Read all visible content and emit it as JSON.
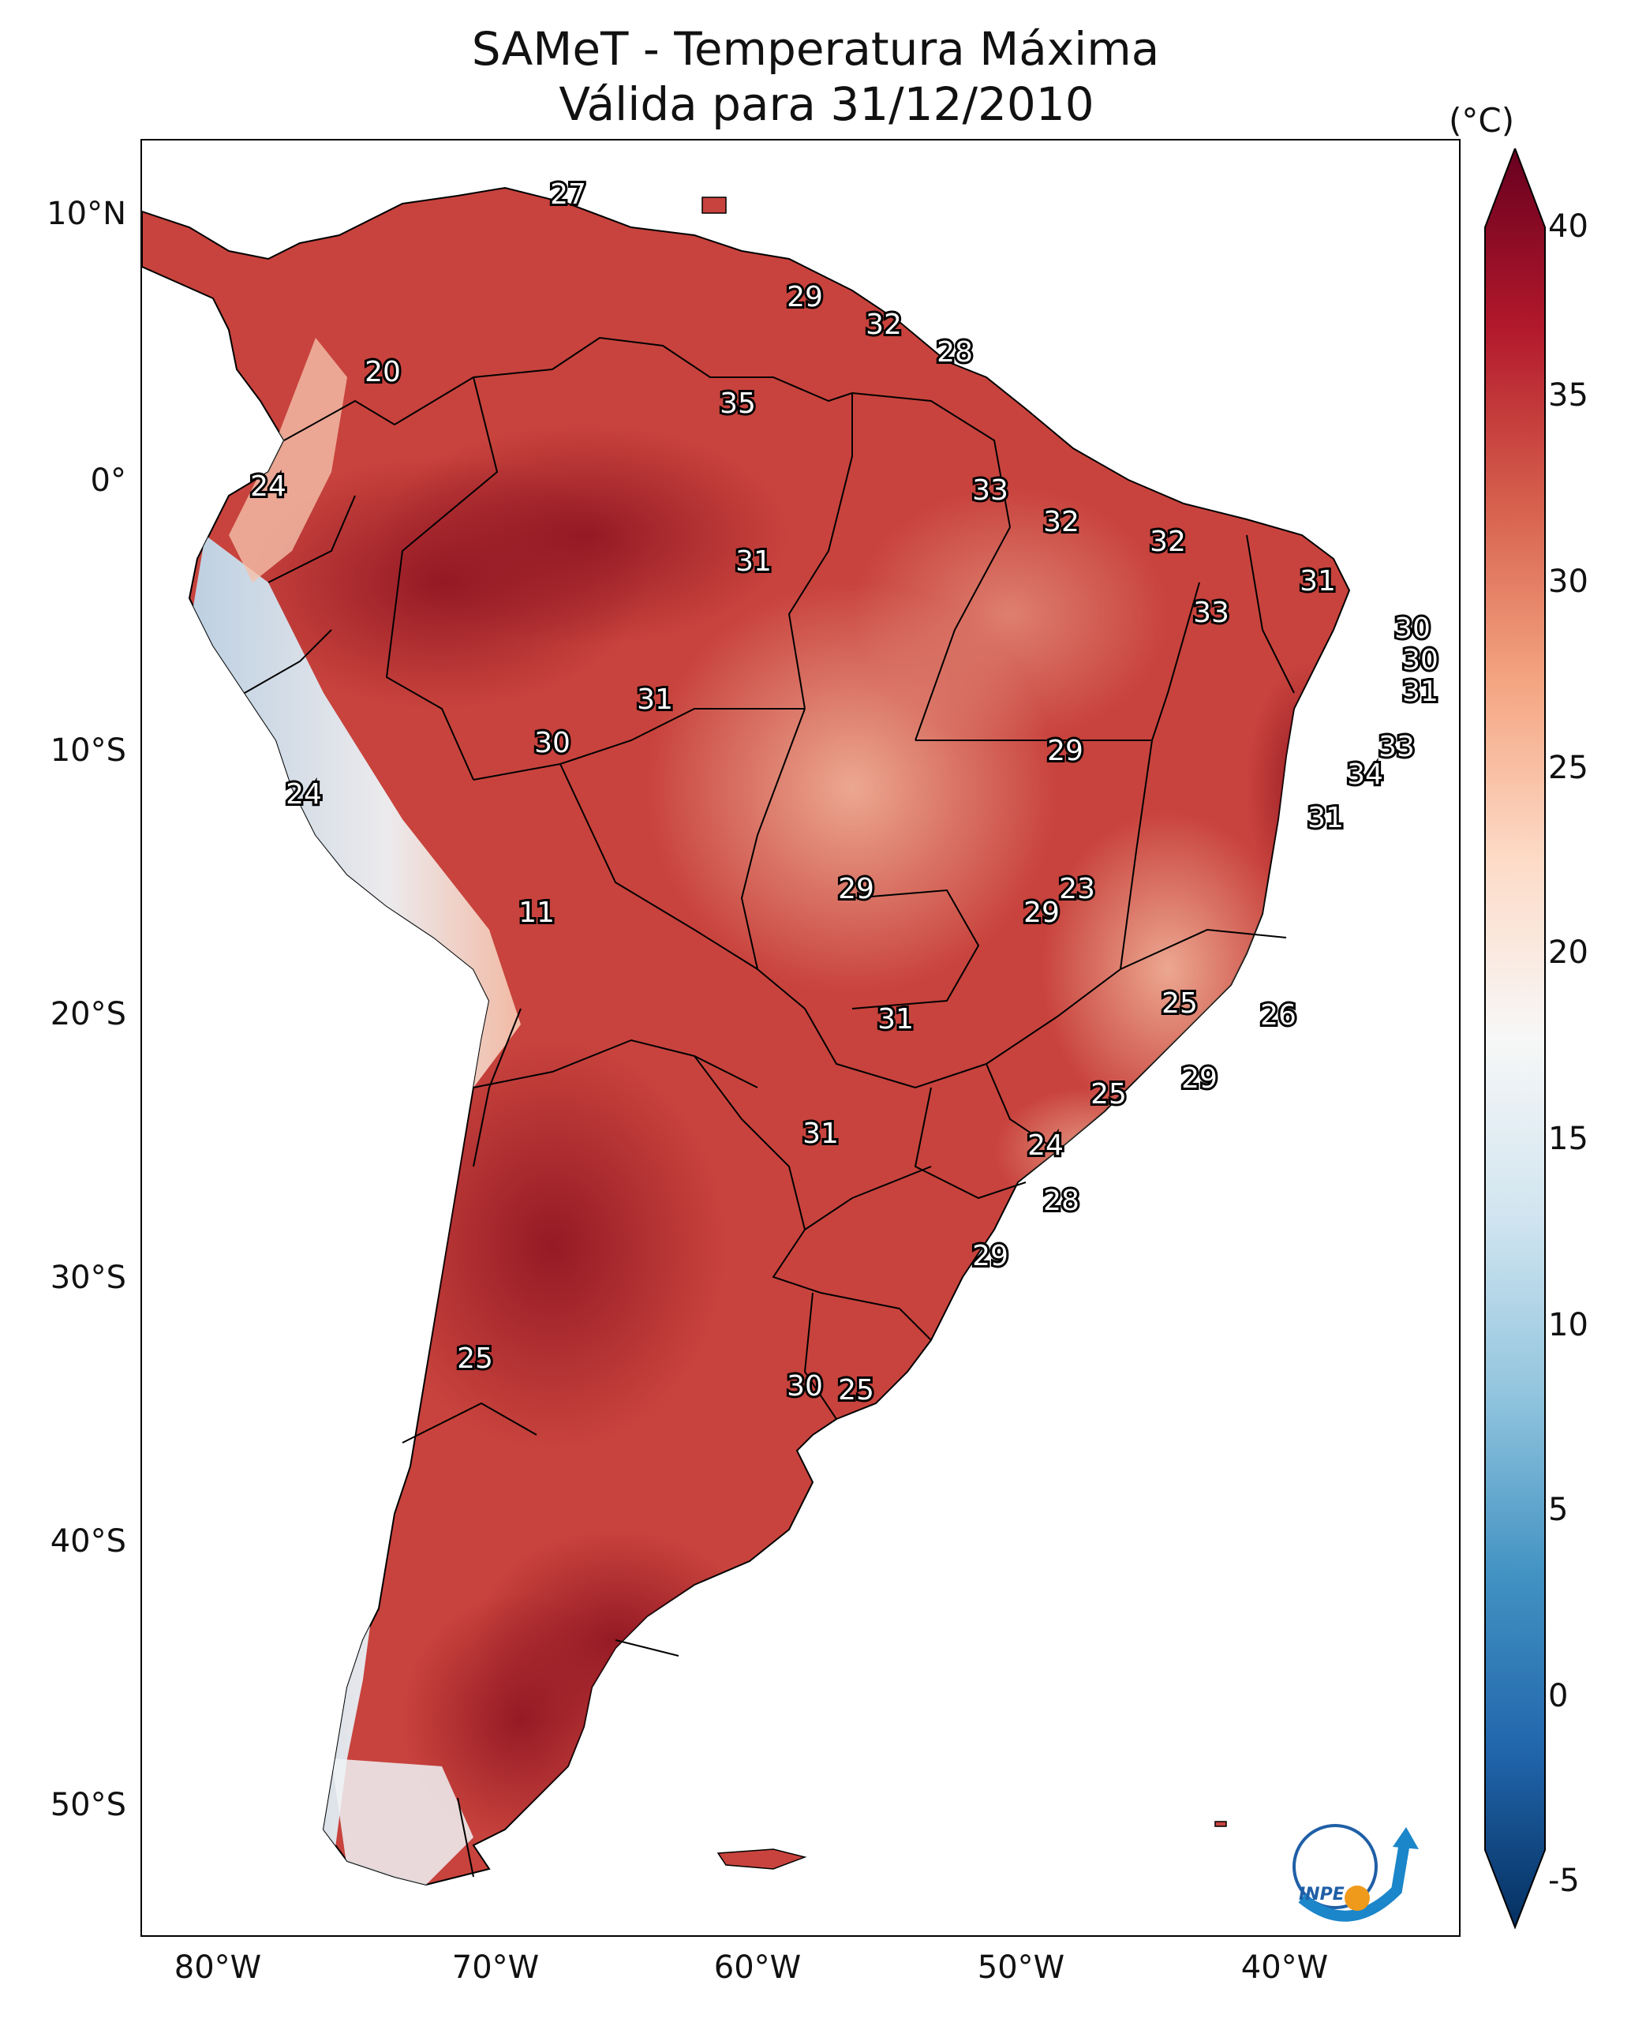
{
  "title": {
    "line1": "SAMeT - Temperatura Máxima",
    "line2": "Válida para 31/12/2010"
  },
  "axes": {
    "lat_labels": [
      "10°N",
      "0°",
      "10°S",
      "20°S",
      "30°S",
      "40°S",
      "50°S"
    ],
    "lon_labels": [
      "80°W",
      "70°W",
      "60°W",
      "50°W",
      "40°W"
    ]
  },
  "colorbar": {
    "unit": "(°C)",
    "ticks": [
      "40",
      "35",
      "30",
      "25",
      "20",
      "15",
      "10",
      "5",
      "0",
      "-5"
    ],
    "colors": [
      "#053061",
      "#2166ac",
      "#4393c3",
      "#92c5de",
      "#d1e5f0",
      "#f7f7f7",
      "#fddbc7",
      "#f4a582",
      "#d6604d",
      "#b2182b",
      "#67001f"
    ]
  },
  "map": {
    "land_color_warm": "#c8433d",
    "land_color_hot": "#8f1522",
    "land_color_mild": "#e89a7f",
    "land_color_cool": "#dbe9f3",
    "ocean_color": "#ffffff",
    "annotations": [
      {
        "name": "venezuela-north",
        "value": "27"
      },
      {
        "name": "guyana",
        "value": "29"
      },
      {
        "name": "suriname",
        "value": "32"
      },
      {
        "name": "french-guiana",
        "value": "28"
      },
      {
        "name": "colombia-andes",
        "value": "20"
      },
      {
        "name": "roraima",
        "value": "35"
      },
      {
        "name": "ecuador",
        "value": "24"
      },
      {
        "name": "amapa",
        "value": "33"
      },
      {
        "name": "para-coast",
        "value": "32"
      },
      {
        "name": "amazonas",
        "value": "31"
      },
      {
        "name": "maranhao",
        "value": "32"
      },
      {
        "name": "ceara",
        "value": "31"
      },
      {
        "name": "piaui",
        "value": "33"
      },
      {
        "name": "rio-grande-do-norte",
        "value": "30"
      },
      {
        "name": "paraiba",
        "value": "30"
      },
      {
        "name": "pernambuco",
        "value": "31"
      },
      {
        "name": "alagoas",
        "value": "33"
      },
      {
        "name": "sergipe",
        "value": "34"
      },
      {
        "name": "acre",
        "value": "30"
      },
      {
        "name": "rondonia",
        "value": "31"
      },
      {
        "name": "tocantins",
        "value": "29"
      },
      {
        "name": "bahia",
        "value": "31"
      },
      {
        "name": "peru-andes",
        "value": "24"
      },
      {
        "name": "bolivia-altiplano",
        "value": "11"
      },
      {
        "name": "mato-grosso",
        "value": "29"
      },
      {
        "name": "brasilia",
        "value": "23"
      },
      {
        "name": "goias",
        "value": "29"
      },
      {
        "name": "minas-gerais",
        "value": "25"
      },
      {
        "name": "espirito-santo",
        "value": "26"
      },
      {
        "name": "mato-grosso-do-sul",
        "value": "31"
      },
      {
        "name": "rio-de-janeiro",
        "value": "29"
      },
      {
        "name": "sao-paulo",
        "value": "25"
      },
      {
        "name": "paraguay",
        "value": "31"
      },
      {
        "name": "parana",
        "value": "24"
      },
      {
        "name": "santa-catarina",
        "value": "28"
      },
      {
        "name": "rio-grande-do-sul",
        "value": "29"
      },
      {
        "name": "chile-central",
        "value": "25"
      },
      {
        "name": "buenos-aires",
        "value": "30"
      },
      {
        "name": "montevideo",
        "value": "25"
      }
    ]
  },
  "logo": {
    "text": "INPE"
  }
}
